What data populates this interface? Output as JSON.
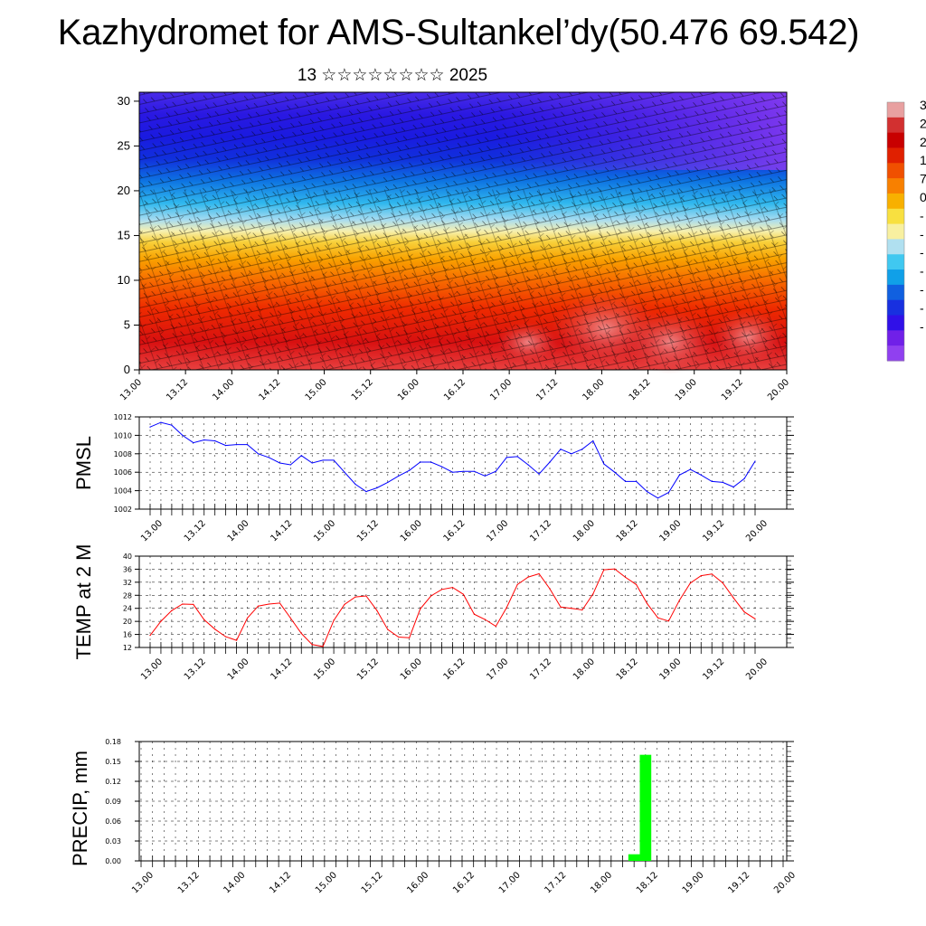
{
  "title": "Kazhydromet for AMS-Sultankel’dy(50.476 69.542)",
  "subtitle": "13 ☆☆☆☆☆☆☆☆ 2025",
  "colors": {
    "pmsl_line": "#0000ff",
    "temp_line": "#ff0000",
    "precip_bar": "#00ff00",
    "grid": "#000000",
    "colorbar": [
      "#e8a0a0",
      "#d23030",
      "#c80000",
      "#e02000",
      "#f05000",
      "#f88000",
      "#f8b000",
      "#f8e040",
      "#f8f0a0",
      "#b0e0f0",
      "#40c8f0",
      "#10a0e8",
      "#1060e0",
      "#1830e0",
      "#3010e8",
      "#7020e8",
      "#9040f0"
    ]
  },
  "colorbar_labels": [
    "3",
    "2",
    "2",
    "1",
    "7",
    "0",
    "-",
    "-",
    "-",
    "-",
    "-",
    "-",
    "-"
  ],
  "chart_data": [
    {
      "type": "heatmap",
      "name": "",
      "x_tick_labels": [
        "13.00",
        "13.12",
        "14.00",
        "14.12",
        "15.00",
        "15.12",
        "16.00",
        "16.12",
        "17.00",
        "17.12",
        "18.00",
        "18.12",
        "19.00",
        "19.12",
        "20.00"
      ],
      "y_ticks": [
        0,
        5,
        10,
        15,
        20,
        25,
        30
      ],
      "ylim": [
        0,
        31
      ],
      "xlabel": "",
      "ylabel": "",
      "grid": false
    },
    {
      "type": "line",
      "ylabel": "PMSL",
      "ylim": [
        1002,
        1012
      ],
      "y_ticks": [
        1002,
        1004,
        1006,
        1008,
        1010,
        1012
      ],
      "x_tick_labels": [
        "13.00",
        "13.12",
        "14.00",
        "14.12",
        "15.00",
        "15.12",
        "16.00",
        "16.12",
        "17.00",
        "17.12",
        "18.00",
        "18.12",
        "19.00",
        "19.12",
        "20.00"
      ],
      "x_hours": [
        0,
        3,
        6,
        9,
        12,
        15,
        18,
        21,
        24,
        27,
        30,
        33,
        36,
        39,
        42,
        45,
        48,
        51,
        54,
        57,
        60,
        63,
        66,
        69,
        72,
        75,
        78,
        81,
        84,
        87,
        90,
        93,
        96,
        99,
        102,
        105,
        108,
        111,
        114,
        117,
        120,
        123,
        126,
        129,
        132,
        135,
        138,
        141,
        144,
        147,
        150,
        153,
        156,
        159,
        162,
        165,
        168
      ],
      "values": [
        1010.9,
        1011.4,
        1011.1,
        1010.0,
        1009.2,
        1009.5,
        1009.4,
        1008.9,
        1009.0,
        1009.0,
        1008.0,
        1007.6,
        1007.0,
        1006.8,
        1007.8,
        1007.0,
        1007.3,
        1007.3,
        1006.0,
        1004.7,
        1003.9,
        1004.3,
        1004.9,
        1005.6,
        1006.2,
        1007.1,
        1007.1,
        1006.6,
        1006.0,
        1006.1,
        1006.1,
        1005.6,
        1006.1,
        1007.6,
        1007.7,
        1006.8,
        1005.8,
        1007.1,
        1008.5,
        1008.0,
        1008.5,
        1009.4,
        1006.9,
        1006.0,
        1005.0,
        1005.0,
        1003.9,
        1003.2,
        1003.8,
        1005.7,
        1006.3,
        1005.7,
        1005.0,
        1004.9,
        1004.4,
        1005.3,
        1007.2
      ],
      "grid": true
    },
    {
      "type": "line",
      "ylabel": "TEMP at 2 M",
      "ylim": [
        12,
        40
      ],
      "y_ticks": [
        12,
        16,
        20,
        24,
        28,
        32,
        36,
        40
      ],
      "x_tick_labels": [
        "13.00",
        "13.12",
        "14.00",
        "14.12",
        "15.00",
        "15.12",
        "16.00",
        "16.12",
        "17.00",
        "17.12",
        "18.00",
        "18.12",
        "19.00",
        "19.12",
        "20.00"
      ],
      "x_hours": [
        0,
        3,
        6,
        9,
        12,
        15,
        18,
        21,
        24,
        27,
        30,
        33,
        36,
        39,
        42,
        45,
        48,
        51,
        54,
        57,
        60,
        63,
        66,
        69,
        72,
        75,
        78,
        81,
        84,
        87,
        90,
        93,
        96,
        99,
        102,
        105,
        108,
        111,
        114,
        117,
        120,
        123,
        126,
        129,
        132,
        135,
        138,
        141,
        144,
        147,
        150,
        153,
        156,
        159,
        162,
        165,
        168
      ],
      "values": [
        15.7,
        20.0,
        23.3,
        25.3,
        25.2,
        20.5,
        17.6,
        15.3,
        14.2,
        21.0,
        24.7,
        25.3,
        25.6,
        21.0,
        16.3,
        12.9,
        12.3,
        20.3,
        25.2,
        27.5,
        27.8,
        23.3,
        17.5,
        15.2,
        15.0,
        23.8,
        27.8,
        29.8,
        30.4,
        28.3,
        22.2,
        20.6,
        18.5,
        24.2,
        31.3,
        33.6,
        34.6,
        30.0,
        24.4,
        24.0,
        23.5,
        28.4,
        35.8,
        36.1,
        33.5,
        31.3,
        25.5,
        21.1,
        20.1,
        26.5,
        31.7,
        34.0,
        34.5,
        31.8,
        27.2,
        22.9,
        20.8
      ],
      "grid": true
    },
    {
      "type": "bar",
      "ylabel": "PRECIP, mm",
      "ylim": [
        0,
        0.18
      ],
      "y_tick_labels": [
        "0.00",
        "0.03",
        "0.06",
        "0.09",
        "0.12",
        "0.15",
        "0.18"
      ],
      "x_tick_labels": [
        "13.00",
        "13.12",
        "14.00",
        "14.12",
        "15.00",
        "15.12",
        "16.00",
        "16.12",
        "17.00",
        "17.12",
        "18.00",
        "18.12",
        "19.00",
        "19.12",
        "20.00"
      ],
      "bars": [
        {
          "x_hours": 129,
          "value": 0.01
        },
        {
          "x_hours": 132,
          "value": 0.16
        }
      ],
      "grid": true
    }
  ]
}
